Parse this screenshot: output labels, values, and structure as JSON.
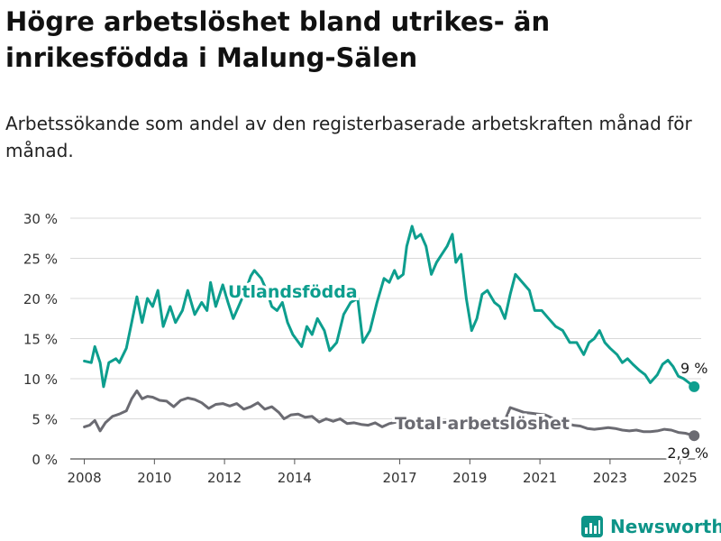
{
  "header": {
    "title": "Högre arbetslöshet bland utrikes- än inrikesfödda i Malung-Sälen",
    "subtitle": "Arbetssökande som andel av den registerbaserade arbetskraften månad för månad."
  },
  "brand": {
    "name": "Newsworthy",
    "icon": "bar-chart-logo-icon",
    "color": "#0d9488"
  },
  "chart_data": {
    "type": "line",
    "title": "",
    "xlabel": "",
    "ylabel": "",
    "ylim": [
      0,
      30
    ],
    "xlim": [
      2007.6,
      2025.6
    ],
    "grid": true,
    "y_ticks": [
      {
        "value": 0,
        "label": "0 %"
      },
      {
        "value": 5,
        "label": "5 %"
      },
      {
        "value": 10,
        "label": "10 %"
      },
      {
        "value": 15,
        "label": "15 %"
      },
      {
        "value": 20,
        "label": "20 %"
      },
      {
        "value": 25,
        "label": "25 %"
      },
      {
        "value": 30,
        "label": "30 %"
      }
    ],
    "x_ticks": [
      {
        "value": 2008,
        "label": "2008"
      },
      {
        "value": 2010,
        "label": "2010"
      },
      {
        "value": 2012,
        "label": "2012"
      },
      {
        "value": 2014,
        "label": "2014"
      },
      {
        "value": 2017,
        "label": "2017"
      },
      {
        "value": 2019,
        "label": "2019"
      },
      {
        "value": 2021,
        "label": "2021"
      },
      {
        "value": 2023,
        "label": "2023"
      },
      {
        "value": 2025,
        "label": "2025"
      }
    ],
    "series": [
      {
        "name": "Utlandsfödda",
        "color": "#0d9e8e",
        "end_label": "9 %",
        "points": [
          [
            2008.0,
            12.2
          ],
          [
            2008.2,
            12.0
          ],
          [
            2008.3,
            14.0
          ],
          [
            2008.45,
            12.0
          ],
          [
            2008.55,
            9.0
          ],
          [
            2008.7,
            12.0
          ],
          [
            2008.9,
            12.5
          ],
          [
            2009.0,
            12.0
          ],
          [
            2009.2,
            13.8
          ],
          [
            2009.35,
            17.0
          ],
          [
            2009.5,
            20.2
          ],
          [
            2009.65,
            17.0
          ],
          [
            2009.8,
            20.0
          ],
          [
            2009.95,
            19.0
          ],
          [
            2010.1,
            21.0
          ],
          [
            2010.25,
            16.5
          ],
          [
            2010.45,
            19.0
          ],
          [
            2010.6,
            17.0
          ],
          [
            2010.8,
            18.5
          ],
          [
            2010.95,
            21.0
          ],
          [
            2011.15,
            18.0
          ],
          [
            2011.35,
            19.5
          ],
          [
            2011.5,
            18.5
          ],
          [
            2011.6,
            22.0
          ],
          [
            2011.75,
            19.0
          ],
          [
            2011.95,
            21.7
          ],
          [
            2012.1,
            19.5
          ],
          [
            2012.25,
            17.5
          ],
          [
            2012.4,
            19.0
          ],
          [
            2012.6,
            21.0
          ],
          [
            2012.75,
            22.8
          ],
          [
            2012.85,
            23.5
          ],
          [
            2013.05,
            22.5
          ],
          [
            2013.2,
            21.0
          ],
          [
            2013.35,
            19.0
          ],
          [
            2013.5,
            18.5
          ],
          [
            2013.65,
            19.5
          ],
          [
            2013.8,
            17.0
          ],
          [
            2013.95,
            15.5
          ],
          [
            2014.2,
            14.0
          ],
          [
            2014.35,
            16.5
          ],
          [
            2014.5,
            15.5
          ],
          [
            2014.65,
            17.5
          ],
          [
            2014.85,
            16.0
          ],
          [
            2015.0,
            13.5
          ],
          [
            2015.2,
            14.5
          ],
          [
            2015.4,
            18.0
          ],
          [
            2015.6,
            19.5
          ],
          [
            2015.8,
            20.0
          ],
          [
            2015.95,
            14.5
          ],
          [
            2016.15,
            16.0
          ],
          [
            2016.35,
            19.5
          ],
          [
            2016.55,
            22.5
          ],
          [
            2016.7,
            22.0
          ],
          [
            2016.85,
            23.5
          ],
          [
            2016.95,
            22.5
          ],
          [
            2017.1,
            23.0
          ],
          [
            2017.2,
            26.5
          ],
          [
            2017.35,
            29.0
          ],
          [
            2017.45,
            27.5
          ],
          [
            2017.6,
            28.0
          ],
          [
            2017.75,
            26.5
          ],
          [
            2017.9,
            23.0
          ],
          [
            2018.05,
            24.5
          ],
          [
            2018.2,
            25.5
          ],
          [
            2018.35,
            26.5
          ],
          [
            2018.5,
            28.0
          ],
          [
            2018.6,
            24.5
          ],
          [
            2018.75,
            25.5
          ],
          [
            2018.9,
            20.0
          ],
          [
            2019.05,
            16.0
          ],
          [
            2019.2,
            17.5
          ],
          [
            2019.35,
            20.5
          ],
          [
            2019.5,
            21.0
          ],
          [
            2019.7,
            19.5
          ],
          [
            2019.85,
            19.0
          ],
          [
            2020.0,
            17.5
          ],
          [
            2020.15,
            20.5
          ],
          [
            2020.3,
            23.0
          ],
          [
            2020.5,
            22.0
          ],
          [
            2020.7,
            21.0
          ],
          [
            2020.85,
            18.5
          ],
          [
            2021.05,
            18.5
          ],
          [
            2021.25,
            17.5
          ],
          [
            2021.45,
            16.5
          ],
          [
            2021.65,
            16.0
          ],
          [
            2021.85,
            14.5
          ],
          [
            2022.05,
            14.5
          ],
          [
            2022.25,
            13.0
          ],
          [
            2022.4,
            14.5
          ],
          [
            2022.55,
            15.0
          ],
          [
            2022.7,
            16.0
          ],
          [
            2022.85,
            14.5
          ],
          [
            2023.0,
            13.8
          ],
          [
            2023.2,
            13.0
          ],
          [
            2023.35,
            12.0
          ],
          [
            2023.5,
            12.5
          ],
          [
            2023.65,
            11.8
          ],
          [
            2023.85,
            11.0
          ],
          [
            2024.0,
            10.5
          ],
          [
            2024.15,
            9.5
          ],
          [
            2024.35,
            10.5
          ],
          [
            2024.5,
            11.8
          ],
          [
            2024.65,
            12.3
          ],
          [
            2024.8,
            11.5
          ],
          [
            2024.95,
            10.3
          ],
          [
            2025.1,
            10.0
          ],
          [
            2025.25,
            9.5
          ],
          [
            2025.4,
            9.0
          ]
        ]
      },
      {
        "name": "Total arbetslöshet",
        "color": "#6b6b72",
        "end_label": "2,9 %",
        "points": [
          [
            2008.0,
            4.0
          ],
          [
            2008.15,
            4.2
          ],
          [
            2008.3,
            4.8
          ],
          [
            2008.45,
            3.5
          ],
          [
            2008.6,
            4.5
          ],
          [
            2008.8,
            5.3
          ],
          [
            2009.0,
            5.6
          ],
          [
            2009.2,
            6.0
          ],
          [
            2009.35,
            7.5
          ],
          [
            2009.5,
            8.5
          ],
          [
            2009.65,
            7.5
          ],
          [
            2009.8,
            7.8
          ],
          [
            2009.95,
            7.7
          ],
          [
            2010.15,
            7.3
          ],
          [
            2010.35,
            7.2
          ],
          [
            2010.55,
            6.5
          ],
          [
            2010.75,
            7.3
          ],
          [
            2010.95,
            7.6
          ],
          [
            2011.15,
            7.4
          ],
          [
            2011.35,
            7.0
          ],
          [
            2011.55,
            6.3
          ],
          [
            2011.75,
            6.8
          ],
          [
            2011.95,
            6.9
          ],
          [
            2012.15,
            6.6
          ],
          [
            2012.35,
            6.9
          ],
          [
            2012.55,
            6.2
          ],
          [
            2012.75,
            6.5
          ],
          [
            2012.95,
            7.0
          ],
          [
            2013.15,
            6.2
          ],
          [
            2013.35,
            6.5
          ],
          [
            2013.55,
            5.8
          ],
          [
            2013.7,
            5.0
          ],
          [
            2013.9,
            5.5
          ],
          [
            2014.1,
            5.6
          ],
          [
            2014.3,
            5.2
          ],
          [
            2014.5,
            5.3
          ],
          [
            2014.7,
            4.6
          ],
          [
            2014.9,
            5.0
          ],
          [
            2015.1,
            4.7
          ],
          [
            2015.3,
            5.0
          ],
          [
            2015.5,
            4.4
          ],
          [
            2015.7,
            4.5
          ],
          [
            2015.9,
            4.3
          ],
          [
            2016.1,
            4.2
          ],
          [
            2016.3,
            4.5
          ],
          [
            2016.5,
            4.0
          ],
          [
            2016.7,
            4.4
          ],
          [
            2016.9,
            4.6
          ],
          [
            2017.1,
            4.5
          ],
          [
            2019.0,
            4.6
          ],
          [
            2020.0,
            4.8
          ],
          [
            2020.15,
            6.4
          ],
          [
            2020.35,
            6.1
          ],
          [
            2020.55,
            5.8
          ],
          [
            2020.75,
            5.7
          ],
          [
            2020.95,
            5.6
          ],
          [
            2021.15,
            5.5
          ],
          [
            2021.35,
            5.1
          ],
          [
            2021.55,
            4.7
          ],
          [
            2021.75,
            4.5
          ],
          [
            2021.95,
            4.2
          ],
          [
            2022.15,
            4.1
          ],
          [
            2022.35,
            3.8
          ],
          [
            2022.55,
            3.7
          ],
          [
            2022.75,
            3.8
          ],
          [
            2022.95,
            3.9
          ],
          [
            2023.15,
            3.8
          ],
          [
            2023.35,
            3.6
          ],
          [
            2023.55,
            3.5
          ],
          [
            2023.75,
            3.6
          ],
          [
            2023.95,
            3.4
          ],
          [
            2024.15,
            3.4
          ],
          [
            2024.35,
            3.5
          ],
          [
            2024.55,
            3.7
          ],
          [
            2024.75,
            3.6
          ],
          [
            2024.95,
            3.3
          ],
          [
            2025.15,
            3.2
          ],
          [
            2025.4,
            2.9
          ]
        ]
      }
    ]
  }
}
